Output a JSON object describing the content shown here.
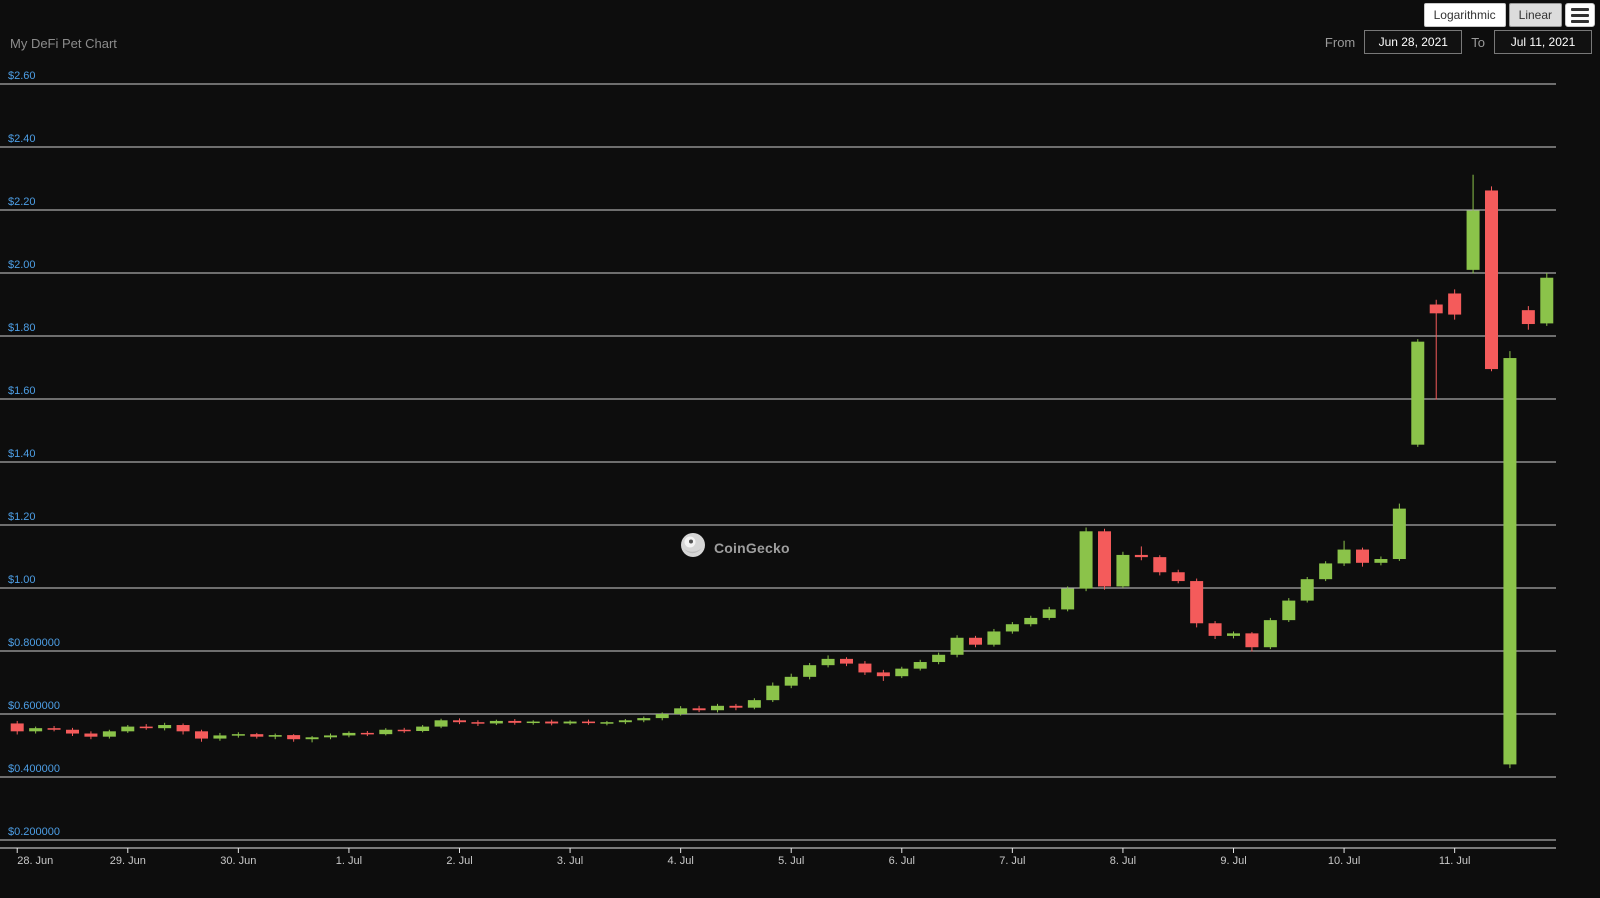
{
  "header": {
    "title": "My DeFi Pet Chart",
    "scale_buttons": {
      "logarithmic_label": "Logarithmic",
      "linear_label": "Linear",
      "selected": "Linear"
    },
    "range": {
      "from_label": "From",
      "from_value": "Jun 28, 2021",
      "to_label": "To",
      "to_value": "Jul 11, 2021"
    }
  },
  "watermark": {
    "text": "CoinGecko"
  },
  "colors": {
    "background": "#0d0d0d",
    "grid": "#e6e6e6",
    "axis_line": "#e6e6e6",
    "up": "#8bc34a",
    "down": "#f45b5b",
    "y_label": "#4d9fe6",
    "x_label": "#c9c9c9"
  },
  "chart_data": {
    "type": "candlestick",
    "title": "My DeFi Pet Chart",
    "legend": "none",
    "grid": true,
    "ylim": [
      0.2,
      2.6
    ],
    "candles_per_day": 6,
    "y_ticks": [
      {
        "label": "$2.60",
        "value": 2.6
      },
      {
        "label": "$2.40",
        "value": 2.4
      },
      {
        "label": "$2.20",
        "value": 2.2
      },
      {
        "label": "$2.00",
        "value": 2.0
      },
      {
        "label": "$1.80",
        "value": 1.8
      },
      {
        "label": "$1.60",
        "value": 1.6
      },
      {
        "label": "$1.40",
        "value": 1.4
      },
      {
        "label": "$1.20",
        "value": 1.2
      },
      {
        "label": "$1.00",
        "value": 1.0
      },
      {
        "label": "$0.800000",
        "value": 0.8
      },
      {
        "label": "$0.600000",
        "value": 0.6
      },
      {
        "label": "$0.400000",
        "value": 0.4
      },
      {
        "label": "$0.200000",
        "value": 0.2
      }
    ],
    "x_tick_labels": [
      "28. Jun",
      "29. Jun",
      "30. Jun",
      "1. Jul",
      "2. Jul",
      "3. Jul",
      "4. Jul",
      "5. Jul",
      "6. Jul",
      "7. Jul",
      "8. Jul",
      "9. Jul",
      "10. Jul",
      "11. Jul"
    ],
    "ohlc_note": "approximate values [open, high, low, close] in USD, 4h candles",
    "candles": [
      [
        0.57,
        0.578,
        0.535,
        0.545
      ],
      [
        0.545,
        0.56,
        0.538,
        0.555
      ],
      [
        0.555,
        0.562,
        0.545,
        0.55
      ],
      [
        0.55,
        0.556,
        0.53,
        0.538
      ],
      [
        0.538,
        0.545,
        0.52,
        0.528
      ],
      [
        0.528,
        0.55,
        0.522,
        0.545
      ],
      [
        0.545,
        0.565,
        0.54,
        0.56
      ],
      [
        0.56,
        0.568,
        0.55,
        0.555
      ],
      [
        0.555,
        0.572,
        0.548,
        0.565
      ],
      [
        0.565,
        0.57,
        0.535,
        0.545
      ],
      [
        0.545,
        0.55,
        0.512,
        0.522
      ],
      [
        0.522,
        0.54,
        0.515,
        0.532
      ],
      [
        0.532,
        0.542,
        0.525,
        0.536
      ],
      [
        0.536,
        0.54,
        0.522,
        0.528
      ],
      [
        0.528,
        0.538,
        0.52,
        0.533
      ],
      [
        0.533,
        0.536,
        0.512,
        0.52
      ],
      [
        0.52,
        0.53,
        0.51,
        0.526
      ],
      [
        0.526,
        0.538,
        0.52,
        0.532
      ],
      [
        0.532,
        0.545,
        0.526,
        0.54
      ],
      [
        0.54,
        0.546,
        0.53,
        0.536
      ],
      [
        0.536,
        0.555,
        0.532,
        0.55
      ],
      [
        0.55,
        0.556,
        0.54,
        0.546
      ],
      [
        0.546,
        0.565,
        0.542,
        0.56
      ],
      [
        0.56,
        0.585,
        0.555,
        0.58
      ],
      [
        0.58,
        0.586,
        0.568,
        0.574
      ],
      [
        0.574,
        0.58,
        0.562,
        0.57
      ],
      [
        0.57,
        0.582,
        0.565,
        0.578
      ],
      [
        0.578,
        0.584,
        0.566,
        0.572
      ],
      [
        0.572,
        0.58,
        0.566,
        0.576
      ],
      [
        0.576,
        0.582,
        0.564,
        0.57
      ],
      [
        0.57,
        0.58,
        0.565,
        0.576
      ],
      [
        0.576,
        0.582,
        0.566,
        0.571
      ],
      [
        0.571,
        0.578,
        0.564,
        0.574
      ],
      [
        0.574,
        0.584,
        0.568,
        0.58
      ],
      [
        0.58,
        0.592,
        0.574,
        0.587
      ],
      [
        0.587,
        0.605,
        0.58,
        0.6
      ],
      [
        0.6,
        0.625,
        0.595,
        0.618
      ],
      [
        0.618,
        0.626,
        0.606,
        0.612
      ],
      [
        0.612,
        0.632,
        0.605,
        0.626
      ],
      [
        0.626,
        0.632,
        0.612,
        0.62
      ],
      [
        0.62,
        0.65,
        0.615,
        0.644
      ],
      [
        0.644,
        0.7,
        0.638,
        0.69
      ],
      [
        0.69,
        0.728,
        0.682,
        0.718
      ],
      [
        0.718,
        0.762,
        0.71,
        0.755
      ],
      [
        0.755,
        0.786,
        0.748,
        0.775
      ],
      [
        0.775,
        0.78,
        0.752,
        0.76
      ],
      [
        0.76,
        0.768,
        0.724,
        0.732
      ],
      [
        0.732,
        0.74,
        0.705,
        0.72
      ],
      [
        0.72,
        0.75,
        0.714,
        0.744
      ],
      [
        0.744,
        0.772,
        0.738,
        0.765
      ],
      [
        0.765,
        0.795,
        0.758,
        0.788
      ],
      [
        0.788,
        0.85,
        0.78,
        0.842
      ],
      [
        0.842,
        0.848,
        0.812,
        0.82
      ],
      [
        0.82,
        0.87,
        0.814,
        0.862
      ],
      [
        0.862,
        0.892,
        0.855,
        0.885
      ],
      [
        0.885,
        0.912,
        0.878,
        0.905
      ],
      [
        0.905,
        0.94,
        0.898,
        0.932
      ],
      [
        0.932,
        1.005,
        0.926,
        0.998
      ],
      [
        0.998,
        1.192,
        0.99,
        1.18
      ],
      [
        1.18,
        1.188,
        0.995,
        1.005
      ],
      [
        1.005,
        1.115,
        1.0,
        1.105
      ],
      [
        1.105,
        1.132,
        1.088,
        1.098
      ],
      [
        1.098,
        1.104,
        1.04,
        1.05
      ],
      [
        1.05,
        1.058,
        1.015,
        1.022
      ],
      [
        1.022,
        1.03,
        0.875,
        0.888
      ],
      [
        0.888,
        0.895,
        0.838,
        0.848
      ],
      [
        0.848,
        0.862,
        0.84,
        0.856
      ],
      [
        0.856,
        0.86,
        0.798,
        0.812
      ],
      [
        0.812,
        0.905,
        0.806,
        0.898
      ],
      [
        0.898,
        0.968,
        0.892,
        0.96
      ],
      [
        0.96,
        1.035,
        0.954,
        1.028
      ],
      [
        1.028,
        1.085,
        1.022,
        1.078
      ],
      [
        1.078,
        1.15,
        1.07,
        1.122
      ],
      [
        1.122,
        1.128,
        1.068,
        1.08
      ],
      [
        1.08,
        1.1,
        1.072,
        1.092
      ],
      [
        1.092,
        1.268,
        1.086,
        1.252
      ],
      [
        1.455,
        1.79,
        1.448,
        1.782
      ],
      [
        1.9,
        1.915,
        1.598,
        1.872
      ],
      [
        1.935,
        1.948,
        1.852,
        1.868
      ],
      [
        2.01,
        2.312,
        1.998,
        2.198
      ],
      [
        2.262,
        2.275,
        1.688,
        1.695
      ],
      [
        0.44,
        1.752,
        0.428,
        1.73
      ],
      [
        1.882,
        1.895,
        1.82,
        1.838
      ],
      [
        1.84,
        2.0,
        1.832,
        1.985
      ]
    ]
  }
}
